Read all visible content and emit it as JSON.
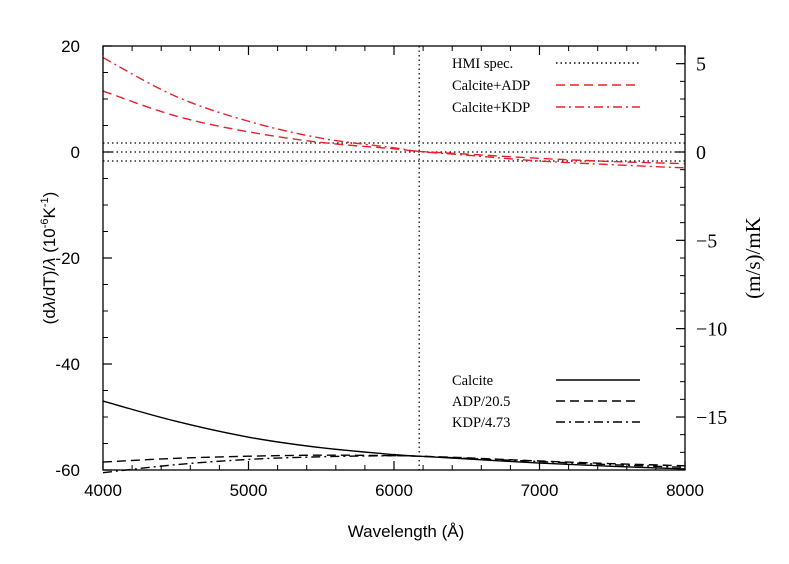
{
  "chart_data": {
    "type": "line",
    "xlabel": "Wavelength (Å)",
    "ylabel": "(dλ/dT)/λ (10⁻⁶K⁻¹)",
    "ylabel_parts": {
      "pre": "(d",
      "lambda1": "λ",
      "mid": "/dT)/",
      "lambda2": "λ",
      "unit_pre": " (10",
      "unit_exp": "-6",
      "unit_mid": "K",
      "unit_exp2": "-1",
      "unit_post": ")"
    },
    "y2label": "(m/s)/mK",
    "xlim": [
      4000,
      8000
    ],
    "ylim": [
      -60,
      20
    ],
    "y2lim": [
      -18,
      6
    ],
    "xticks": [
      "4000",
      "5000",
      "6000",
      "7000",
      "8000"
    ],
    "yticks": [
      "-60",
      "-40",
      "-20",
      "0",
      "20"
    ],
    "y2ticks": [
      "−15",
      "−10",
      "−5",
      "0",
      "5"
    ],
    "grid": false,
    "legend_top": "top-right",
    "legend_bottom": "bottom-right",
    "x": [
      4000,
      4500,
      5000,
      5500,
      6000,
      6173,
      6500,
      7000,
      7500,
      8000
    ],
    "series": [
      {
        "name": "Calcite+ADP",
        "color": "#e8202a",
        "dash": "dashed",
        "values": [
          11.5,
          6.8,
          3.8,
          1.8,
          0.6,
          0.1,
          -0.4,
          -1.2,
          -1.8,
          -2.2
        ]
      },
      {
        "name": "Calcite+KDP",
        "color": "#e8202a",
        "dash": "dashdot",
        "values": [
          17.8,
          10.5,
          5.8,
          2.6,
          0.8,
          0.1,
          -0.6,
          -1.7,
          -2.4,
          -3.0
        ]
      },
      {
        "name": "Calcite",
        "color": "#000000",
        "dash": "solid",
        "values": [
          -47.0,
          -50.8,
          -53.8,
          -55.8,
          -57.1,
          -57.4,
          -57.9,
          -58.7,
          -59.3,
          -59.8
        ]
      },
      {
        "name": "ADP/20.5",
        "color": "#000000",
        "dash": "dashed",
        "values": [
          -58.5,
          -57.8,
          -57.4,
          -57.2,
          -57.3,
          -57.4,
          -57.7,
          -58.3,
          -58.8,
          -59.2
        ]
      },
      {
        "name": "KDP/4.73",
        "color": "#000000",
        "dash": "dashdot",
        "values": [
          -60.5,
          -59.0,
          -58.0,
          -57.5,
          -57.3,
          -57.4,
          -57.8,
          -58.4,
          -59.0,
          -59.5
        ]
      }
    ],
    "reference_lines": {
      "name": "HMI spec.",
      "style": "dotted",
      "horizontal_y": [
        1.7,
        0,
        -1.7
      ],
      "vertical_x": 6173
    },
    "legend_top_entries": [
      "HMI spec.",
      "Calcite+ADP",
      "Calcite+KDP"
    ],
    "legend_bottom_entries": [
      "Calcite",
      "ADP/20.5",
      "KDP/4.73"
    ]
  }
}
